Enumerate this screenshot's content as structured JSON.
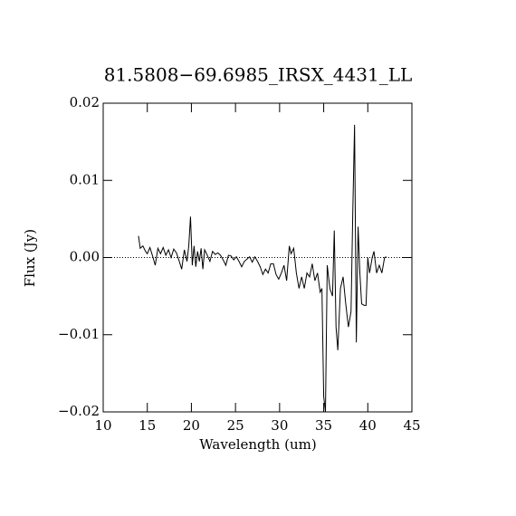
{
  "chart_data": {
    "type": "line",
    "title": "81.5808−69.6985_IRSX_4431_LL",
    "x_label": "Wavelength (um)",
    "y_label": "Flux (Jy)",
    "color": "#000000",
    "reference_line": 0,
    "xlim": [
      10,
      45
    ],
    "xticks": [
      10,
      15,
      20,
      25,
      30,
      35,
      40,
      45
    ],
    "ylim": [
      -0.02,
      0.02
    ],
    "yticks": [
      {
        "value": -0.02,
        "label": "−0.02"
      },
      {
        "value": -0.01,
        "label": "−0.01"
      },
      {
        "value": 0,
        "label": "0.00"
      },
      {
        "value": 0.01,
        "label": "0.01"
      },
      {
        "value": 0.02,
        "label": "0.02"
      }
    ],
    "x": [
      14.0,
      14.2,
      14.5,
      14.8,
      15.0,
      15.3,
      15.6,
      15.9,
      16.2,
      16.5,
      16.8,
      17.1,
      17.4,
      17.7,
      18.0,
      18.3,
      18.6,
      18.9,
      19.2,
      19.5,
      19.7,
      19.9,
      20.1,
      20.3,
      20.5,
      20.7,
      20.9,
      21.1,
      21.3,
      21.5,
      21.8,
      22.1,
      22.4,
      22.7,
      23.0,
      23.3,
      23.6,
      23.9,
      24.2,
      24.5,
      24.8,
      25.1,
      25.4,
      25.7,
      26.0,
      26.3,
      26.6,
      26.9,
      27.2,
      27.5,
      27.8,
      28.1,
      28.4,
      28.7,
      29.0,
      29.3,
      29.6,
      29.9,
      30.2,
      30.5,
      30.8,
      31.1,
      31.3,
      31.6,
      31.9,
      32.2,
      32.5,
      32.8,
      33.1,
      33.4,
      33.7,
      34.0,
      34.3,
      34.6,
      34.8,
      35.0,
      35.2,
      35.4,
      35.7,
      36.0,
      36.2,
      36.4,
      36.6,
      36.9,
      37.2,
      37.5,
      37.8,
      38.1,
      38.3,
      38.5,
      38.7,
      38.9,
      39.1,
      39.3,
      39.6,
      39.8,
      40.0,
      40.2,
      40.5,
      40.7,
      41.0,
      41.3,
      41.6,
      41.9,
      42.1
    ],
    "values": [
      0.0028,
      0.0012,
      0.0015,
      0.0008,
      0.0005,
      0.0013,
      0.0002,
      -0.001,
      0.0012,
      0.0005,
      0.0013,
      0.0003,
      0.001,
      0.0,
      0.0011,
      0.0006,
      -0.0004,
      -0.0015,
      0.001,
      -0.0005,
      0.0015,
      0.0053,
      -0.001,
      0.0015,
      -0.0012,
      0.0008,
      -0.0005,
      0.0012,
      -0.0015,
      0.001,
      0.0003,
      -0.0005,
      0.0008,
      0.0004,
      0.0006,
      0.0003,
      -0.0003,
      -0.001,
      0.0003,
      0.0002,
      -0.0003,
      0.0001,
      -0.0005,
      -0.0012,
      -0.0005,
      -0.0002,
      0.0001,
      -0.0006,
      0.0001,
      -0.0005,
      -0.0012,
      -0.0022,
      -0.0015,
      -0.002,
      -0.0008,
      -0.0008,
      -0.0022,
      -0.0028,
      -0.002,
      -0.001,
      -0.003,
      0.0015,
      0.0005,
      0.0012,
      -0.002,
      -0.004,
      -0.0025,
      -0.004,
      -0.002,
      -0.0025,
      -0.0008,
      -0.003,
      -0.002,
      -0.0045,
      -0.004,
      -0.018,
      -0.02,
      -0.001,
      -0.004,
      -0.005,
      0.0035,
      -0.009,
      -0.012,
      -0.004,
      -0.0025,
      -0.006,
      -0.009,
      -0.007,
      0.006,
      0.0172,
      -0.011,
      0.004,
      -0.002,
      -0.006,
      -0.0062,
      -0.0062,
      0.0,
      -0.002,
      0.0,
      0.0008,
      -0.002,
      -0.001,
      -0.002,
      0.0,
      0.0001
    ]
  }
}
